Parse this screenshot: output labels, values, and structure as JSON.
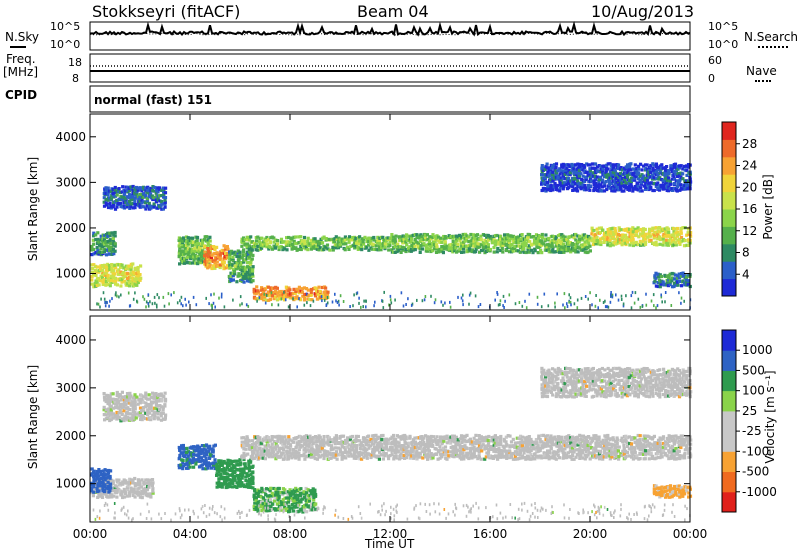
{
  "header": {
    "station": "Stokkseyri (fitACF)",
    "beam": "Beam 04",
    "date": "10/Aug/2013"
  },
  "side_labels": {
    "nsky": "N.Sky",
    "nsearch": "N.Search",
    "freq": "Freq.",
    "freq_unit": "[MHz]",
    "nave": "Nave",
    "cpid": "CPID",
    "cpid_value": "normal (fast) 151"
  },
  "noise_axis_ticks": [
    "10^5",
    "10^0"
  ],
  "freq_axis_left_ticks": [
    "18",
    "8"
  ],
  "freq_axis_right_ticks": [
    "60",
    "0"
  ],
  "power_panel": {
    "ylabel": "Slant Range [km]",
    "colorbar_label": "Power [dB]"
  },
  "velocity_panel": {
    "ylabel": "Slant Range [km]",
    "colorbar_label": "Velocity [m s⁻¹]"
  },
  "x_axis": {
    "label": "Time UT",
    "ticks": [
      "00:00",
      "04:00",
      "08:00",
      "12:00",
      "16:00",
      "20:00",
      "00:00"
    ]
  },
  "colors": {
    "power": [
      "#1e2ad6",
      "#2b5fc9",
      "#2e8a63",
      "#55b04b",
      "#8bd44a",
      "#c9e24b",
      "#f0d43a",
      "#f7a233",
      "#ee6a2a",
      "#e0261f"
    ],
    "velocity": [
      "#e0201b",
      "#f06a1f",
      "#f7a233",
      "#c8c8c8",
      "#c8c8c8",
      "#8ad34a",
      "#2f9b4f",
      "#2e63c4",
      "#1e2ad6"
    ],
    "ground_scatter": "#bdbdbd"
  },
  "chart_data": [
    {
      "type": "line",
      "title": "",
      "series": [
        {
          "name": "N.Sky",
          "approx_level": "10^5 baseline"
        },
        {
          "name": "N.Search",
          "approx_level": "10^5 baseline"
        }
      ],
      "ytick_labels": [
        "10^5",
        "10^0"
      ]
    },
    {
      "type": "line",
      "series": [
        {
          "name": "Freq.",
          "approx_mhz": 12
        },
        {
          "name": "Nave",
          "approx": 45
        }
      ],
      "ylim_left": [
        8,
        18
      ],
      "ylim_right": [
        0,
        60
      ]
    },
    {
      "type": "heatmap",
      "ylabel": "Slant Range [km]",
      "xlabel": "Time UT",
      "xlim_hours": [
        0,
        24
      ],
      "ylim_km": [
        200,
        4500
      ],
      "yticks": [
        1000,
        2000,
        3000,
        4000
      ],
      "colorbar_label": "Power [dB]",
      "colorbar_ticks": [
        4,
        8,
        12,
        16,
        20,
        24,
        28
      ],
      "regions": [
        {
          "t0": 0.0,
          "t1": 2.0,
          "r0": 700,
          "r1": 1200,
          "level": 20
        },
        {
          "t0": 0.0,
          "t1": 1.0,
          "r0": 1400,
          "r1": 1900,
          "level": 10
        },
        {
          "t0": 0.5,
          "t1": 3.0,
          "r0": 2400,
          "r1": 2900,
          "level": 6
        },
        {
          "t0": 3.5,
          "t1": 4.8,
          "r0": 1200,
          "r1": 1800,
          "level": 14
        },
        {
          "t0": 4.5,
          "t1": 5.5,
          "r0": 1100,
          "r1": 1600,
          "level": 26
        },
        {
          "t0": 5.5,
          "t1": 6.5,
          "r0": 800,
          "r1": 1500,
          "level": 12
        },
        {
          "t0": 6.5,
          "t1": 9.5,
          "r0": 400,
          "r1": 700,
          "level": 26
        },
        {
          "t0": 6.0,
          "t1": 12.0,
          "r0": 1500,
          "r1": 1800,
          "level": 14
        },
        {
          "t0": 12.0,
          "t1": 20.0,
          "r0": 1450,
          "r1": 1850,
          "level": 14
        },
        {
          "t0": 20.0,
          "t1": 24.0,
          "r0": 1600,
          "r1": 2000,
          "level": 20
        },
        {
          "t0": 18.0,
          "t1": 24.0,
          "r0": 2800,
          "r1": 3400,
          "level": 4
        },
        {
          "t0": 22.5,
          "t1": 24.0,
          "r0": 700,
          "r1": 1000,
          "level": 8
        }
      ]
    },
    {
      "type": "heatmap",
      "ylabel": "Slant Range [km]",
      "xlabel": "Time UT",
      "xlim_hours": [
        0,
        24
      ],
      "ylim_km": [
        200,
        4500
      ],
      "yticks": [
        1000,
        2000,
        3000,
        4000
      ],
      "colorbar_label": "Velocity [m s⁻¹]",
      "colorbar_ticks": [
        1000,
        500,
        100,
        25,
        -25,
        -100,
        -500,
        -1000
      ],
      "regions": [
        {
          "t0": 0.0,
          "t1": 2.5,
          "r0": 700,
          "r1": 1100,
          "velocity": 0
        },
        {
          "t0": 0.0,
          "t1": 0.8,
          "r0": 800,
          "r1": 1300,
          "velocity": 800
        },
        {
          "t0": 0.5,
          "t1": 3.0,
          "r0": 2300,
          "r1": 2900,
          "velocity": 0
        },
        {
          "t0": 3.5,
          "t1": 5.0,
          "r0": 1300,
          "r1": 1800,
          "velocity": 600
        },
        {
          "t0": 5.0,
          "t1": 6.5,
          "r0": 900,
          "r1": 1500,
          "velocity": 300
        },
        {
          "t0": 6.5,
          "t1": 9.0,
          "r0": 400,
          "r1": 900,
          "velocity": 150
        },
        {
          "t0": 6.0,
          "t1": 24.0,
          "r0": 1500,
          "r1": 2000,
          "velocity": 0
        },
        {
          "t0": 18.0,
          "t1": 24.0,
          "r0": 2800,
          "r1": 3400,
          "velocity": 0
        },
        {
          "t0": 22.5,
          "t1": 24.0,
          "r0": 700,
          "r1": 950,
          "velocity": -200
        }
      ]
    }
  ]
}
